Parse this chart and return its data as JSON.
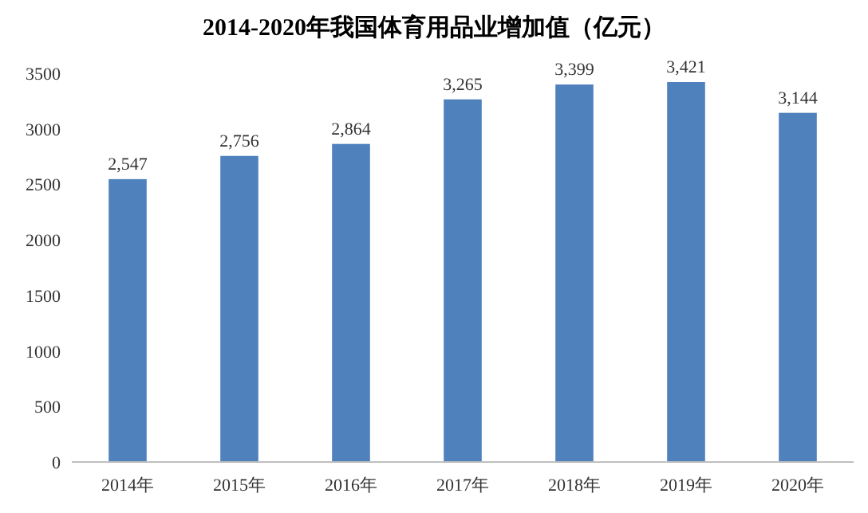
{
  "chart_data": {
    "type": "bar",
    "title": "2014-2020年我国体育用品业增加值（亿元）",
    "categories": [
      "2014年",
      "2015年",
      "2016年",
      "2017年",
      "2018年",
      "2019年",
      "2020年"
    ],
    "values": [
      2547,
      2756,
      2864,
      3265,
      3399,
      3421,
      3144
    ],
    "value_labels": [
      "2,547",
      "2,756",
      "2,864",
      "3,265",
      "3,399",
      "3,421",
      "3,144"
    ],
    "color": "#4f81bd",
    "ylim": [
      0,
      3500
    ],
    "yticks": [
      0,
      500,
      1000,
      1500,
      2000,
      2500,
      3000,
      3500
    ]
  }
}
